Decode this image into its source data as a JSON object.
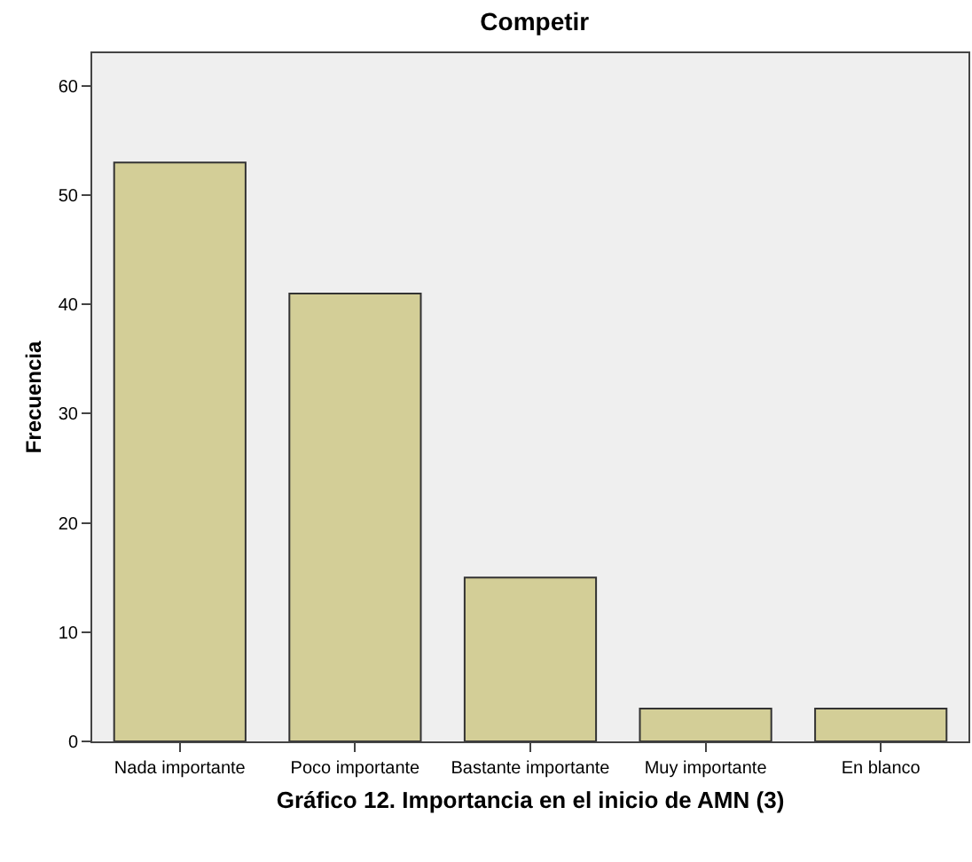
{
  "chart_data": {
    "type": "bar",
    "title": "Competir",
    "xlabel": "Gráfico 12. Importancia en el inicio de AMN (3)",
    "ylabel": "Frecuencia",
    "categories": [
      "Nada importante",
      "Poco importante",
      "Bastante importante",
      "Muy importante",
      "En blanco"
    ],
    "values": [
      53,
      41,
      15,
      3,
      3
    ],
    "color": "#d3ce97",
    "ylim": [
      0,
      63
    ],
    "yticks": [
      0,
      10,
      20,
      30,
      40,
      50,
      60
    ],
    "grid": false
  }
}
